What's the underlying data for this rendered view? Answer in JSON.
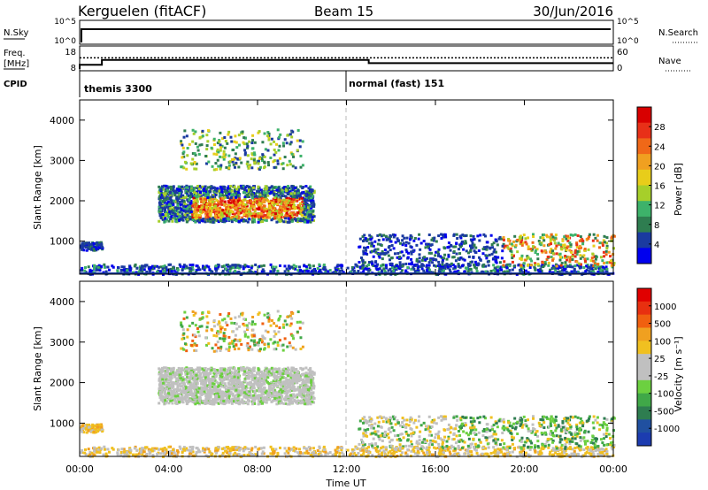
{
  "header": {
    "station": "Kerguelen (fitACF)",
    "beam": "Beam 15",
    "date": "30/Jun/2016"
  },
  "top_panels": {
    "nsky_label": "N.Sky",
    "nsky_ticks": [
      "10^5",
      "10^0"
    ],
    "nsearch_label": "N.Search",
    "nsearch_ticks": [
      "10^5",
      "10^0"
    ],
    "freq_label_1": "Freq.",
    "freq_label_2": "[MHz]",
    "freq_ticks": [
      "18",
      "8"
    ],
    "nave_label": "Nave",
    "nave_ticks": [
      "60",
      "0"
    ],
    "cpid_label": "CPID",
    "cpid_segments": [
      {
        "label": "themis 3300",
        "start_hour": 0
      },
      {
        "label": "normal (fast) 151",
        "start_hour": 12
      }
    ],
    "freq_series": [
      {
        "hour": 0,
        "mhz": 9
      },
      {
        "hour": 1,
        "mhz": 12
      },
      {
        "hour": 13,
        "mhz": 10
      }
    ],
    "nave_level": 40
  },
  "panels": [
    {
      "name": "power",
      "ylabel": "Slant Range [km]",
      "yticks": [
        "1000",
        "2000",
        "3000",
        "4000"
      ],
      "colorbar_label": "Power [dB]",
      "colorbar_ticks": [
        "28",
        "24",
        "20",
        "16",
        "12",
        "8",
        "4"
      ],
      "colors": [
        "#0000ee",
        "#1a3aa0",
        "#2e7d50",
        "#3db26a",
        "#a6cf2a",
        "#e8cd1a",
        "#f0a020",
        "#f06818",
        "#e83018",
        "#d80000"
      ]
    },
    {
      "name": "velocity",
      "ylabel": "Slant Range [km]",
      "yticks": [
        "1000",
        "2000",
        "3000",
        "4000"
      ],
      "colorbar_label": "Velocity [m s⁻¹]",
      "colorbar_ticks": [
        "1000",
        "500",
        "100",
        "25",
        "-25",
        "-100",
        "-500",
        "-1000"
      ],
      "colors": [
        "#1c3cb0",
        "#2050a0",
        "#2e7d50",
        "#40a848",
        "#6cd040",
        "#c0c0c0",
        "#c0c0c0",
        "#f0c020",
        "#f0a020",
        "#f06010",
        "#e83010",
        "#e00000"
      ]
    }
  ],
  "xaxis": {
    "label": "Time UT",
    "ticks": [
      "00:00",
      "04:00",
      "08:00",
      "12:00",
      "16:00",
      "20:00",
      "00:00"
    ]
  },
  "chart_data": {
    "type": "heatmap",
    "title": "Kerguelen (fitACF)",
    "subtitle": "Beam 15",
    "xlabel": "Time UT",
    "ylabel": "Slant Range [km]",
    "xlim": [
      0,
      24
    ],
    "ylim": [
      180,
      4500
    ],
    "scatter_regions": [
      {
        "name": "E-region near range",
        "t_range": [
          0,
          24
        ],
        "r_range": [
          180,
          450
        ]
      },
      {
        "name": "Early morning patch",
        "t_range": [
          0,
          1
        ],
        "r_range": [
          800,
          1000
        ]
      },
      {
        "name": "Main F-region band",
        "t_range": [
          3.5,
          10.5
        ],
        "r_range": [
          1500,
          2400
        ]
      },
      {
        "name": "High-range echoes",
        "t_range": [
          4.5,
          10
        ],
        "r_range": [
          2800,
          3800
        ]
      },
      {
        "name": "Afternoon band",
        "t_range": [
          12.5,
          24
        ],
        "r_range": [
          400,
          1200
        ]
      }
    ]
  }
}
